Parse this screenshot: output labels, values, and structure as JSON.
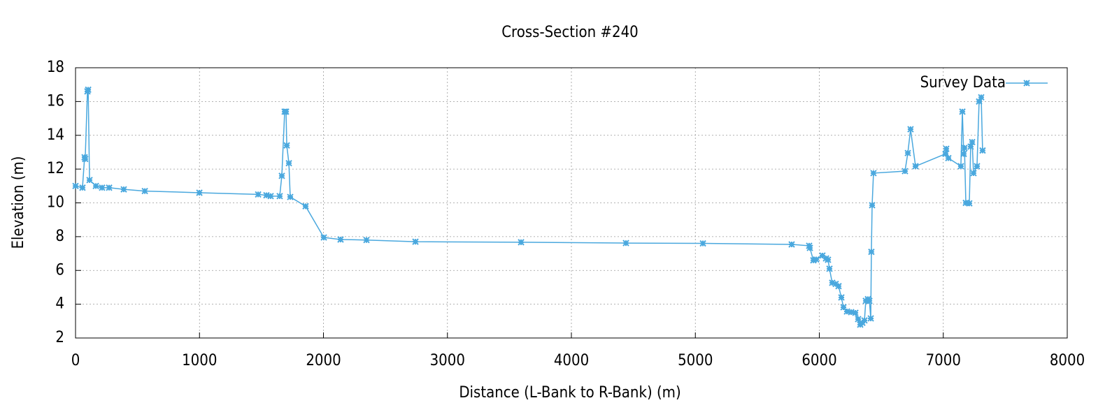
{
  "chart_data": {
    "type": "line",
    "title": "Cross-Section #240",
    "x_label": "Distance (L-Bank to R-Bank) (m)",
    "y_label": "Elevation (m)",
    "x": [
      0,
      56,
      73,
      78,
      96,
      102,
      113,
      164,
      214,
      271,
      389,
      559,
      999,
      1473,
      1540,
      1574,
      1647,
      1664,
      1687,
      1698,
      1704,
      1721,
      1732,
      1856,
      2003,
      2138,
      2347,
      2742,
      3594,
      4440,
      5061,
      5777,
      5918,
      5924,
      5952,
      5975,
      6025,
      6054,
      6070,
      6082,
      6104,
      6132,
      6155,
      6178,
      6195,
      6223,
      6257,
      6291,
      6313,
      6330,
      6347,
      6364,
      6375,
      6392,
      6404,
      6415,
      6420,
      6426,
      6437,
      6691,
      6714,
      6736,
      6776,
      7018,
      7024,
      7041,
      7142,
      7154,
      7165,
      7171,
      7182,
      7210,
      7221,
      7233,
      7244,
      7272,
      7289,
      7306,
      7317
    ],
    "series": [
      {
        "name": "Survey Data",
        "color": "#4aa8de",
        "values": [
          11.0,
          10.9,
          12.7,
          12.6,
          16.6,
          16.7,
          11.35,
          11.0,
          10.9,
          10.9,
          10.8,
          10.7,
          10.6,
          10.5,
          10.45,
          10.4,
          10.4,
          11.6,
          15.4,
          15.4,
          13.4,
          12.35,
          10.35,
          9.8,
          7.95,
          7.83,
          7.8,
          7.7,
          7.67,
          7.62,
          7.6,
          7.54,
          7.46,
          7.33,
          6.6,
          6.65,
          6.88,
          6.71,
          6.63,
          6.1,
          5.27,
          5.2,
          5.07,
          4.4,
          3.82,
          3.57,
          3.53,
          3.49,
          3.12,
          2.79,
          2.9,
          3.04,
          4.2,
          4.3,
          4.2,
          3.16,
          7.1,
          9.86,
          11.76,
          11.88,
          12.95,
          14.36,
          12.17,
          12.9,
          13.2,
          12.65,
          12.17,
          15.4,
          12.9,
          13.25,
          10.0,
          9.97,
          13.33,
          13.6,
          11.76,
          12.17,
          16.0,
          16.25,
          13.1
        ]
      }
    ],
    "xlim": [
      0,
      8000
    ],
    "xticks": [
      0,
      1000,
      2000,
      3000,
      4000,
      5000,
      6000,
      7000,
      8000
    ],
    "ylim": [
      2,
      18
    ],
    "yticks": [
      2,
      4,
      6,
      8,
      10,
      12,
      14,
      16,
      18
    ],
    "grid": true,
    "legend": "top-right"
  }
}
